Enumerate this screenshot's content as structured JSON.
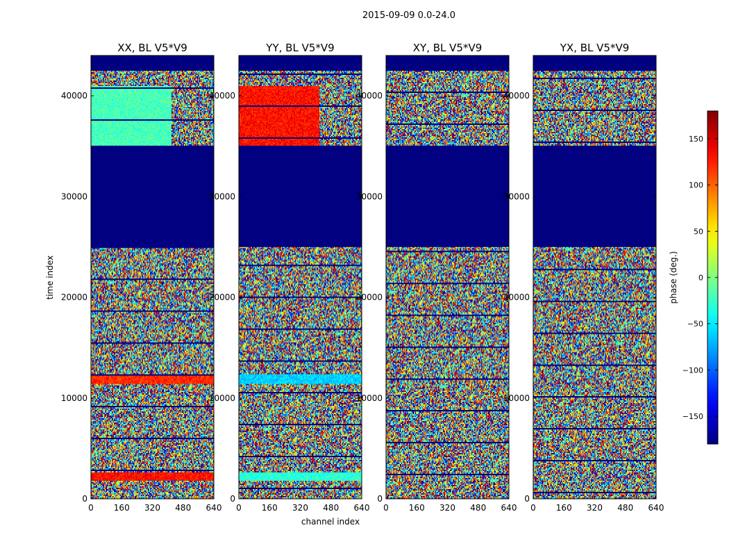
{
  "figure_title": "2015-09-09 0.0-24.0",
  "chart_data": {
    "type": "heatmap",
    "title": "2015-09-09 0.0-24.0",
    "xlabel": "channel index",
    "ylabel": "time index",
    "xlim": [
      0,
      640
    ],
    "ylim": [
      0,
      44000
    ],
    "x_ticks": [
      "0",
      "160",
      "320",
      "480",
      "640"
    ],
    "y_ticks": [
      "0",
      "10000",
      "20000",
      "30000",
      "40000"
    ],
    "panels": [
      {
        "title": "XX, BL V5*V9",
        "special_bands": [
          {
            "y0": 11400,
            "y1": 12400,
            "value": 120
          },
          {
            "y0": 1800,
            "y1": 2600,
            "value": 130
          },
          {
            "y0": 35000,
            "y1": 41000,
            "value": -20,
            "x1": 420
          }
        ]
      },
      {
        "title": "YY, BL V5*V9",
        "special_bands": [
          {
            "y0": 11400,
            "y1": 12400,
            "value": -60
          },
          {
            "y0": 1800,
            "y1": 2600,
            "value": -30
          },
          {
            "y0": 35000,
            "y1": 41000,
            "value": 130,
            "x1": 420
          }
        ]
      },
      {
        "title": "XY, BL V5*V9",
        "special_bands": []
      },
      {
        "title": "YX, BL V5*V9",
        "special_bands": []
      }
    ],
    "blank_rows": [
      {
        "y0": 25000,
        "y1": 35000
      },
      {
        "y0": 42500,
        "y1": 44000
      }
    ],
    "colorbar": {
      "label": "phase (deg.)",
      "range": [
        -180,
        180
      ],
      "ticks": [
        "150",
        "100",
        "50",
        "0",
        "−50",
        "−100",
        "−150"
      ],
      "colormap": "jet"
    }
  }
}
